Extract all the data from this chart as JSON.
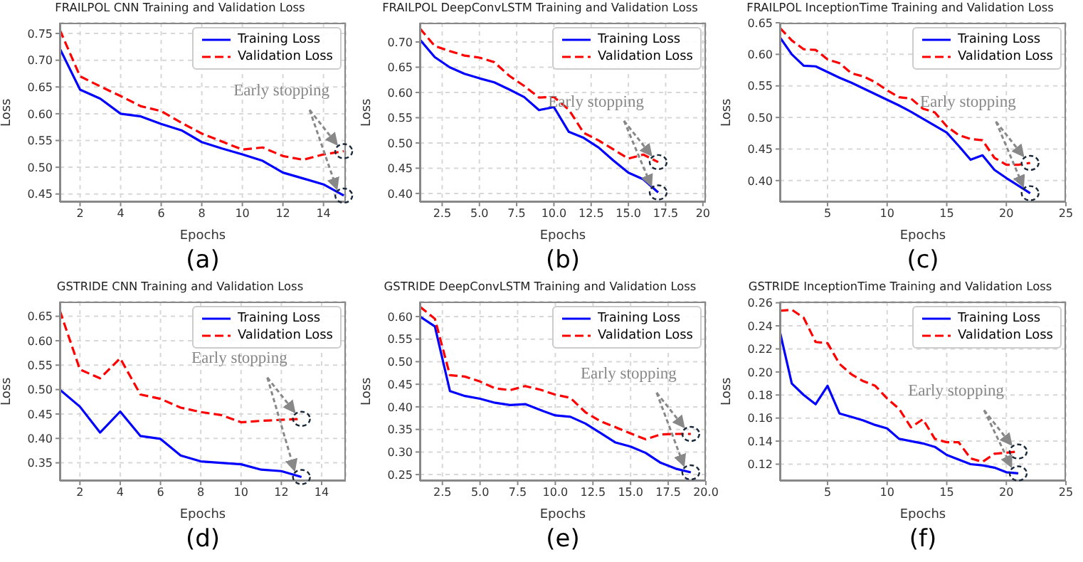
{
  "chart_data": [
    {
      "type": "line",
      "title": "FRAILPOL CNN Training and Validation Loss",
      "xlabel": "Epochs",
      "ylabel": "Loss",
      "x": [
        1,
        2,
        3,
        4,
        5,
        6,
        7,
        8,
        9,
        10,
        11,
        12,
        13,
        14,
        15
      ],
      "xlim": [
        1,
        15.1
      ],
      "ylim": [
        0.435,
        0.77
      ],
      "xticks": [
        2,
        4,
        6,
        8,
        10,
        12,
        14
      ],
      "yticks": [
        {
          "value": 0.45,
          "label": "0.45"
        },
        {
          "value": 0.5,
          "label": "0.50"
        },
        {
          "value": 0.55,
          "label": "0.55"
        },
        {
          "value": 0.6,
          "label": "0.60"
        },
        {
          "value": 0.65,
          "label": "0.65"
        },
        {
          "value": 0.7,
          "label": "0.70"
        },
        {
          "value": 0.75,
          "label": "0.75"
        }
      ],
      "grid": true,
      "legend": "top right",
      "annotations": [
        {
          "text": "Early stopping",
          "x": 15,
          "y": 0.53
        },
        "(a)"
      ],
      "series": [
        {
          "name": "Training Loss",
          "color": "#0000ff",
          "line_style": "solid",
          "values": [
            0.722,
            0.645,
            0.628,
            0.6,
            0.595,
            0.581,
            0.569,
            0.547,
            0.535,
            0.524,
            0.512,
            0.49,
            0.479,
            0.468,
            0.447
          ]
        },
        {
          "name": "Validation Loss",
          "color": "#ff0000",
          "line_style": "dashed",
          "values": [
            0.757,
            0.67,
            0.651,
            0.633,
            0.614,
            0.605,
            0.583,
            0.563,
            0.548,
            0.533,
            0.537,
            0.521,
            0.514,
            0.524,
            0.53
          ]
        }
      ]
    },
    {
      "type": "line",
      "title": "FRAILPOL DeepConvLSTM Training and Validation Loss",
      "xlabel": "Epochs",
      "ylabel": "Loss",
      "x": [
        1,
        2,
        3,
        4,
        5,
        6,
        7,
        8,
        9,
        10,
        11,
        12,
        13,
        14,
        15,
        16,
        17
      ],
      "xlim": [
        1,
        20.2
      ],
      "ylim": [
        0.383,
        0.738
      ],
      "xticks": [
        2.5,
        {
          "value": 5,
          "label": "5.0"
        },
        7.5,
        {
          "value": 10,
          "label": "10.0"
        },
        12.5,
        {
          "value": 15,
          "label": "15.0"
        },
        17.5,
        20
      ],
      "yticks": [
        {
          "value": 0.4,
          "label": "0.40"
        },
        0.45,
        {
          "value": 0.5,
          "label": "0.50"
        },
        0.55,
        {
          "value": 0.6,
          "label": "0.60"
        },
        0.65,
        {
          "value": 0.7,
          "label": "0.70"
        }
      ],
      "grid": true,
      "legend": "top right",
      "annotations": [
        {
          "text": "Early stopping",
          "x": 17,
          "y": 0.462
        },
        "(b)"
      ],
      "series": [
        {
          "name": "Training Loss",
          "color": "#0000ff",
          "line_style": "solid",
          "values": [
            0.705,
            0.67,
            0.65,
            0.637,
            0.628,
            0.62,
            0.606,
            0.591,
            0.565,
            0.571,
            0.522,
            0.51,
            0.491,
            0.465,
            0.441,
            0.428,
            0.402
          ]
        },
        {
          "name": "Validation Loss",
          "color": "#ff0000",
          "line_style": "dashed",
          "values": [
            0.727,
            0.692,
            0.682,
            0.673,
            0.669,
            0.66,
            0.633,
            0.613,
            0.59,
            0.591,
            0.566,
            0.52,
            0.505,
            0.487,
            0.469,
            0.477,
            0.462
          ]
        }
      ]
    },
    {
      "type": "line",
      "title": "FRAILPOL InceptionTime Training and Validation Loss",
      "xlabel": "Epochs",
      "ylabel": "Loss",
      "x": [
        1,
        2,
        3,
        4,
        5,
        6,
        7,
        8,
        9,
        10,
        11,
        12,
        13,
        14,
        15,
        16,
        17,
        18,
        19,
        20,
        21,
        22
      ],
      "xlim": [
        1,
        25
      ],
      "ylim": [
        0.366,
        0.65
      ],
      "xticks": [
        5,
        10,
        15,
        20,
        25
      ],
      "yticks": [
        {
          "value": 0.4,
          "label": "0.40"
        },
        0.45,
        {
          "value": 0.5,
          "label": "0.50"
        },
        0.55,
        {
          "value": 0.6,
          "label": "0.60"
        },
        0.65
      ],
      "grid": true,
      "legend": "top right",
      "annotations": [
        {
          "text": "Early stopping",
          "x": 22,
          "y": 0.428
        },
        "(c)"
      ],
      "series": [
        {
          "name": "Training Loss",
          "color": "#0000ff",
          "line_style": "solid",
          "values": [
            0.627,
            0.6,
            0.582,
            0.581,
            0.572,
            0.563,
            0.555,
            0.546,
            0.537,
            0.528,
            0.519,
            0.509,
            0.498,
            0.487,
            0.476,
            0.455,
            0.433,
            0.44,
            0.417,
            0.404,
            0.392,
            0.38
          ]
        },
        {
          "name": "Validation Loss",
          "color": "#ff0000",
          "line_style": "dashed",
          "values": [
            0.642,
            0.622,
            0.608,
            0.607,
            0.592,
            0.586,
            0.57,
            0.565,
            0.556,
            0.543,
            0.532,
            0.53,
            0.514,
            0.508,
            0.486,
            0.472,
            0.466,
            0.464,
            0.436,
            0.425,
            0.425,
            0.428
          ]
        }
      ]
    },
    {
      "type": "line",
      "title": "GSTRIDE CNN Training and Validation Loss",
      "xlabel": "Epochs",
      "ylabel": "Loss",
      "x": [
        1,
        2,
        3,
        4,
        5,
        6,
        7,
        8,
        9,
        10,
        11,
        12,
        13
      ],
      "xlim": [
        1,
        15.2
      ],
      "ylim": [
        0.313,
        0.68
      ],
      "xticks": [
        2,
        4,
        6,
        8,
        10,
        12,
        14
      ],
      "yticks": [
        0.35,
        {
          "value": 0.4,
          "label": "0.40"
        },
        0.45,
        {
          "value": 0.5,
          "label": "0.50"
        },
        0.55,
        {
          "value": 0.6,
          "label": "0.60"
        },
        0.65
      ],
      "grid": true,
      "legend": "top right",
      "annotations": [
        {
          "text": "Early stopping",
          "x": 13,
          "y": 0.44
        },
        "(d)"
      ],
      "series": [
        {
          "name": "Training Loss",
          "color": "#0000ff",
          "line_style": "solid",
          "values": [
            0.5,
            0.465,
            0.412,
            0.455,
            0.405,
            0.399,
            0.365,
            0.353,
            0.35,
            0.347,
            0.336,
            0.333,
            0.321
          ]
        },
        {
          "name": "Validation Loss",
          "color": "#ff0000",
          "line_style": "dashed",
          "values": [
            0.662,
            0.541,
            0.523,
            0.564,
            0.49,
            0.481,
            0.463,
            0.454,
            0.448,
            0.433,
            0.436,
            0.438,
            0.44
          ]
        }
      ]
    },
    {
      "type": "line",
      "title": "GSTRIDE DeepConvLSTM Training and Validation Loss",
      "xlabel": "Epochs",
      "ylabel": "Loss",
      "x": [
        1,
        2,
        3,
        4,
        5,
        6,
        7,
        8,
        9,
        10,
        11,
        12,
        13,
        14,
        15,
        16,
        17,
        18,
        19
      ],
      "xlim": [
        1,
        20
      ],
      "ylim": [
        0.236,
        0.633
      ],
      "xticks": [
        2.5,
        {
          "value": 5,
          "label": "5.0"
        },
        7.5,
        {
          "value": 10,
          "label": "10.0"
        },
        12.5,
        {
          "value": 15,
          "label": "15.0"
        },
        17.5,
        {
          "value": 20,
          "label": "20.0"
        }
      ],
      "yticks": [
        0.25,
        {
          "value": 0.3,
          "label": "0.30"
        },
        0.35,
        {
          "value": 0.4,
          "label": "0.40"
        },
        0.45,
        {
          "value": 0.5,
          "label": "0.50"
        },
        0.55,
        {
          "value": 0.6,
          "label": "0.60"
        }
      ],
      "grid": true,
      "legend": "top right",
      "annotations": [
        {
          "text": "Early stopping",
          "x": 19,
          "y": 0.34
        },
        "(e)"
      ],
      "series": [
        {
          "name": "Training Loss",
          "color": "#0000ff",
          "line_style": "solid",
          "values": [
            0.6,
            0.578,
            0.435,
            0.424,
            0.418,
            0.409,
            0.404,
            0.406,
            0.393,
            0.381,
            0.378,
            0.363,
            0.342,
            0.321,
            0.312,
            0.298,
            0.276,
            0.263,
            0.255
          ]
        },
        {
          "name": "Validation Loss",
          "color": "#ff0000",
          "line_style": "dashed",
          "values": [
            0.622,
            0.595,
            0.47,
            0.467,
            0.456,
            0.441,
            0.437,
            0.446,
            0.438,
            0.427,
            0.42,
            0.388,
            0.368,
            0.355,
            0.341,
            0.328,
            0.339,
            0.34,
            0.34
          ]
        }
      ]
    },
    {
      "type": "line",
      "title": "GSTRIDE InceptionTime Training and Validation Loss",
      "xlabel": "Epochs",
      "ylabel": "Loss",
      "x": [
        1,
        2,
        3,
        4,
        5,
        6,
        7,
        8,
        9,
        10,
        11,
        12,
        13,
        14,
        15,
        16,
        17,
        18,
        19,
        20,
        21
      ],
      "xlim": [
        1,
        25
      ],
      "ylim": [
        0.1055,
        0.261
      ],
      "xticks": [
        5,
        10,
        15,
        20,
        25
      ],
      "yticks": [
        0.12,
        0.14,
        0.16,
        0.18,
        {
          "value": 0.2,
          "label": "0.20"
        },
        0.22,
        0.24,
        0.26
      ],
      "grid": true,
      "legend": "top right",
      "annotations": [
        {
          "text": "Early stopping",
          "x": 21,
          "y": 0.131
        },
        "(f)"
      ],
      "series": [
        {
          "name": "Training Loss",
          "color": "#0000ff",
          "line_style": "solid",
          "values": [
            0.235,
            0.19,
            0.18,
            0.172,
            0.188,
            0.164,
            0.161,
            0.158,
            0.154,
            0.151,
            0.142,
            0.14,
            0.138,
            0.135,
            0.128,
            0.124,
            0.12,
            0.119,
            0.117,
            0.113,
            0.112
          ]
        },
        {
          "name": "Validation Loss",
          "color": "#ff0000",
          "line_style": "dashed",
          "values": [
            0.253,
            0.254,
            0.247,
            0.226,
            0.225,
            0.207,
            0.198,
            0.192,
            0.188,
            0.177,
            0.168,
            0.152,
            0.159,
            0.142,
            0.139,
            0.139,
            0.125,
            0.122,
            0.129,
            0.13,
            0.131
          ]
        }
      ]
    }
  ]
}
